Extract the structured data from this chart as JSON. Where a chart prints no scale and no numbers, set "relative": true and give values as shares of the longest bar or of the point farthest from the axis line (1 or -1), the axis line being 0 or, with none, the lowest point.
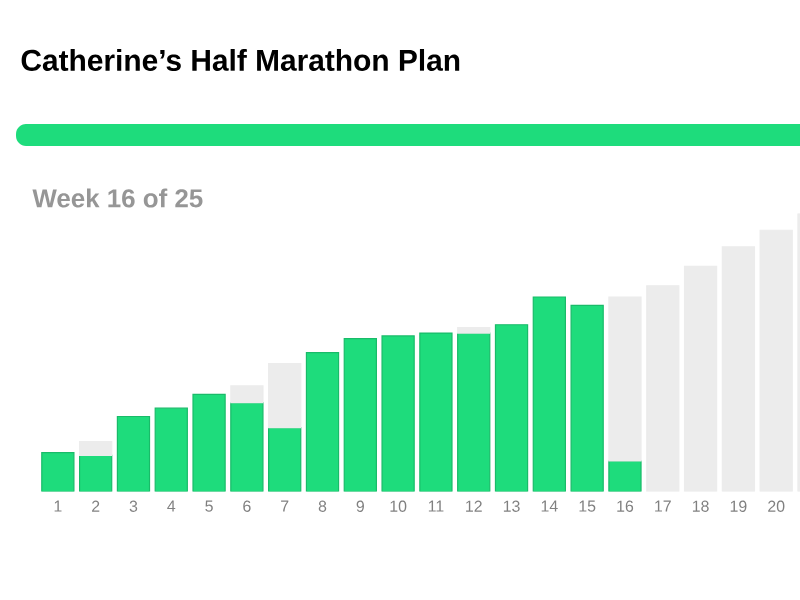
{
  "chart_data": {
    "type": "bar",
    "stacked": true,
    "title": "Catherine’s Half Marathon Plan",
    "subtitle": "Week 16  of 25",
    "relative": true,
    "tick_labels": "x",
    "categories": [
      "1",
      "2",
      "3",
      "4",
      "5",
      "6",
      "7",
      "8",
      "9",
      "10",
      "11",
      "12",
      "13",
      "14",
      "15",
      "16",
      "17",
      "18",
      "19",
      "20",
      null
    ],
    "series": [
      {
        "color": "#1edc7c",
        "values": [
          0.14,
          0.13,
          0.27,
          0.3,
          0.35,
          0.32,
          0.23,
          0.5,
          0.55,
          0.56,
          0.57,
          0.57,
          0.6,
          0.7,
          0.67,
          0.11,
          null,
          null,
          null,
          null,
          null
        ]
      },
      {
        "color": "#ececec",
        "values": [
          null,
          0.05,
          null,
          null,
          null,
          0.06,
          0.23,
          null,
          null,
          null,
          null,
          0.02,
          null,
          null,
          null,
          0.59,
          0.74,
          0.81,
          0.88,
          0.94,
          1
        ]
      }
    ]
  }
}
